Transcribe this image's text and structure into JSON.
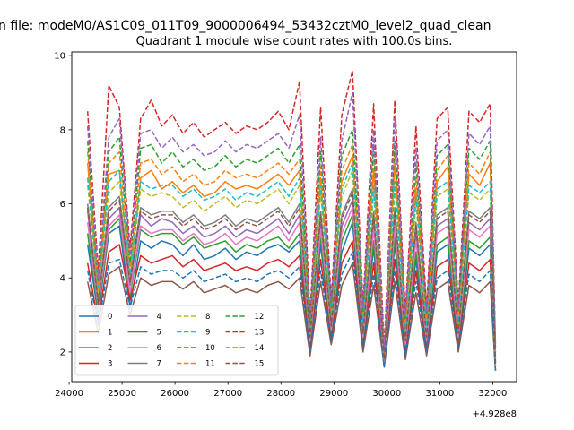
{
  "chart_data": {
    "type": "line",
    "suptitle": "n file: modeM0/AS1C09_011T09_9000006494_53432cztM0_level2_quad_clean",
    "title": "Quadrant 1 module wise count rates with 100.0s bins.",
    "xlabel": "",
    "ylabel": "",
    "x_offset_label": "+4.928e8",
    "xlim": [
      24050,
      32450
    ],
    "ylim": [
      1.2,
      10.1
    ],
    "x_ticks": [
      24000,
      25000,
      26000,
      27000,
      28000,
      29000,
      30000,
      31000,
      32000
    ],
    "y_ticks": [
      2,
      4,
      6,
      8,
      10
    ],
    "legend_position": "lower-left",
    "legend_columns": 4,
    "x": [
      24350,
      24550,
      24750,
      24950,
      25150,
      25350,
      25550,
      25750,
      25950,
      26150,
      26350,
      26550,
      26750,
      26950,
      27150,
      27350,
      27550,
      27750,
      27950,
      28150,
      28350,
      28550,
      28750,
      28950,
      29150,
      29350,
      29550,
      29750,
      29950,
      30150,
      30350,
      30550,
      30750,
      30950,
      31150,
      31350,
      31550,
      31750,
      31950,
      32050
    ],
    "series": [
      {
        "name": "0",
        "color": "#1f77b4",
        "style": "solid",
        "values": [
          4.9,
          3.0,
          5.2,
          5.4,
          3.2,
          5.0,
          4.8,
          5.0,
          4.9,
          4.6,
          4.9,
          4.5,
          4.6,
          4.8,
          4.5,
          4.7,
          4.6,
          4.8,
          4.9,
          4.7,
          5.0,
          2.1,
          4.9,
          2.4,
          4.7,
          5.5,
          2.2,
          4.8,
          1.6,
          4.9,
          2.0,
          4.5,
          2.1,
          4.7,
          4.9,
          2.2,
          4.8,
          4.6,
          4.9,
          1.5
        ]
      },
      {
        "name": "1",
        "color": "#ff7f0e",
        "style": "solid",
        "values": [
          7.1,
          3.5,
          6.8,
          6.9,
          4.0,
          6.7,
          6.9,
          6.4,
          6.6,
          6.3,
          6.5,
          6.2,
          6.3,
          6.6,
          6.4,
          6.5,
          6.4,
          6.6,
          6.8,
          6.5,
          6.9,
          2.6,
          6.7,
          3.0,
          6.6,
          7.3,
          2.9,
          6.9,
          1.8,
          7.1,
          2.7,
          6.4,
          2.8,
          6.6,
          7.0,
          2.9,
          6.8,
          6.5,
          7.1,
          1.9
        ]
      },
      {
        "name": "2",
        "color": "#2ca02c",
        "style": "solid",
        "values": [
          5.2,
          3.1,
          5.3,
          5.6,
          3.5,
          5.3,
          5.1,
          5.2,
          5.2,
          4.9,
          5.1,
          4.8,
          4.9,
          5.0,
          4.7,
          4.9,
          4.8,
          5.0,
          5.1,
          4.8,
          5.2,
          2.2,
          5.1,
          2.5,
          5.0,
          5.7,
          2.3,
          5.0,
          1.7,
          5.1,
          2.1,
          4.7,
          2.3,
          4.9,
          5.1,
          2.3,
          5.0,
          4.8,
          5.1,
          1.6
        ]
      },
      {
        "name": "3",
        "color": "#d62728",
        "style": "solid",
        "values": [
          4.4,
          2.8,
          4.7,
          4.9,
          3.4,
          4.6,
          4.4,
          4.5,
          4.6,
          4.3,
          4.5,
          4.2,
          4.3,
          4.4,
          4.2,
          4.3,
          4.2,
          4.4,
          4.5,
          4.3,
          4.6,
          2.0,
          4.5,
          2.3,
          4.4,
          5.0,
          2.1,
          4.4,
          1.6,
          4.5,
          1.9,
          4.2,
          2.0,
          4.3,
          4.5,
          2.1,
          4.4,
          4.2,
          4.5,
          1.5
        ]
      },
      {
        "name": "4",
        "color": "#9467bd",
        "style": "solid",
        "values": [
          5.8,
          3.3,
          5.6,
          5.9,
          3.8,
          5.7,
          5.4,
          5.6,
          5.5,
          5.2,
          5.4,
          5.1,
          5.2,
          5.4,
          5.1,
          5.3,
          5.2,
          5.4,
          5.6,
          5.2,
          5.7,
          2.4,
          5.5,
          2.7,
          5.4,
          6.1,
          2.5,
          5.5,
          1.7,
          5.6,
          2.3,
          5.2,
          2.4,
          5.4,
          5.6,
          2.5,
          5.5,
          5.3,
          5.6,
          1.7
        ]
      },
      {
        "name": "5",
        "color": "#8c564b",
        "style": "solid",
        "values": [
          3.9,
          2.5,
          4.1,
          4.3,
          3.0,
          4.0,
          3.8,
          3.9,
          3.9,
          3.7,
          3.9,
          3.6,
          3.7,
          3.8,
          3.6,
          3.7,
          3.6,
          3.8,
          3.9,
          3.7,
          4.0,
          1.9,
          3.9,
          2.2,
          3.8,
          4.4,
          2.0,
          3.8,
          1.6,
          3.9,
          1.8,
          3.6,
          1.9,
          3.7,
          3.9,
          2.0,
          3.8,
          3.6,
          3.9,
          1.5
        ]
      },
      {
        "name": "6",
        "color": "#e377c2",
        "style": "solid",
        "values": [
          5.5,
          3.2,
          5.4,
          5.7,
          3.6,
          5.4,
          5.2,
          5.3,
          5.3,
          5.0,
          5.2,
          4.9,
          5.0,
          5.2,
          4.9,
          5.1,
          5.0,
          5.2,
          5.4,
          5.0,
          5.5,
          2.3,
          5.3,
          2.6,
          5.2,
          5.9,
          2.4,
          5.3,
          1.7,
          5.4,
          2.2,
          5.0,
          2.3,
          5.2,
          5.4,
          2.4,
          5.3,
          5.1,
          5.4,
          1.6
        ]
      },
      {
        "name": "7",
        "color": "#7f7f7f",
        "style": "solid",
        "values": [
          6.0,
          3.4,
          5.9,
          6.2,
          3.9,
          5.9,
          5.7,
          5.8,
          5.8,
          5.5,
          5.7,
          5.4,
          5.5,
          5.7,
          5.4,
          5.6,
          5.5,
          5.7,
          5.9,
          5.5,
          6.0,
          2.4,
          5.8,
          2.8,
          5.7,
          6.4,
          2.6,
          5.8,
          1.8,
          5.9,
          2.4,
          5.5,
          2.5,
          5.7,
          5.9,
          2.6,
          5.8,
          5.6,
          5.9,
          1.7
        ]
      },
      {
        "name": "8",
        "color": "#bcbd22",
        "style": "dashed",
        "values": [
          6.5,
          3.6,
          6.3,
          6.6,
          4.0,
          6.4,
          6.2,
          6.3,
          6.2,
          5.9,
          6.1,
          5.8,
          6.0,
          6.2,
          5.9,
          6.1,
          6.0,
          6.2,
          6.4,
          6.0,
          6.5,
          2.5,
          6.3,
          2.9,
          6.2,
          6.9,
          2.7,
          6.3,
          1.8,
          6.4,
          2.5,
          6.0,
          2.6,
          6.2,
          6.4,
          2.7,
          6.3,
          6.1,
          6.4,
          1.8
        ]
      },
      {
        "name": "9",
        "color": "#17becf",
        "style": "dashed",
        "values": [
          6.7,
          3.7,
          6.6,
          6.9,
          4.1,
          6.6,
          6.4,
          6.5,
          6.5,
          6.2,
          6.4,
          6.1,
          6.2,
          6.4,
          6.1,
          6.3,
          6.2,
          6.4,
          6.6,
          6.2,
          6.7,
          2.6,
          6.5,
          3.0,
          6.4,
          7.1,
          2.8,
          6.5,
          1.9,
          6.6,
          2.6,
          6.2,
          2.7,
          6.4,
          6.6,
          2.8,
          6.5,
          6.3,
          6.6,
          1.8
        ]
      },
      {
        "name": "10",
        "color": "#1f77b4",
        "style": "dashed",
        "values": [
          4.2,
          2.7,
          4.4,
          4.5,
          3.2,
          4.3,
          4.1,
          4.2,
          4.2,
          4.0,
          4.2,
          3.9,
          4.0,
          4.1,
          3.9,
          4.0,
          3.9,
          4.1,
          4.2,
          4.0,
          4.3,
          2.0,
          4.2,
          2.3,
          4.1,
          4.7,
          2.1,
          4.1,
          1.6,
          4.2,
          1.9,
          3.9,
          2.0,
          4.0,
          4.2,
          2.1,
          4.1,
          3.9,
          4.2,
          1.5
        ]
      },
      {
        "name": "11",
        "color": "#ff7f0e",
        "style": "dashed",
        "values": [
          7.4,
          3.8,
          7.1,
          7.4,
          4.3,
          7.1,
          7.2,
          6.8,
          7.0,
          6.6,
          6.8,
          6.5,
          6.6,
          6.9,
          6.7,
          6.8,
          6.7,
          6.9,
          7.1,
          6.8,
          7.2,
          2.7,
          7.0,
          3.1,
          6.9,
          7.6,
          3.0,
          7.2,
          1.9,
          7.4,
          2.8,
          6.7,
          2.9,
          6.9,
          7.3,
          3.0,
          7.1,
          6.8,
          7.4,
          2.0
        ]
      },
      {
        "name": "12",
        "color": "#2ca02c",
        "style": "dashed",
        "values": [
          7.7,
          3.9,
          7.4,
          7.8,
          4.4,
          7.5,
          7.6,
          7.1,
          7.4,
          7.0,
          7.2,
          6.9,
          7.0,
          7.3,
          7.0,
          7.2,
          7.1,
          7.3,
          7.5,
          7.1,
          7.6,
          2.8,
          7.4,
          3.2,
          7.3,
          8.0,
          3.1,
          7.6,
          2.0,
          7.7,
          2.9,
          7.1,
          3.0,
          7.3,
          7.6,
          3.1,
          7.5,
          7.2,
          7.7,
          2.1
        ]
      },
      {
        "name": "13",
        "color": "#d62728",
        "style": "dashed",
        "values": [
          8.5,
          4.2,
          9.2,
          8.6,
          4.8,
          8.3,
          8.8,
          8.1,
          8.4,
          7.9,
          8.2,
          7.8,
          8.0,
          8.2,
          7.9,
          8.1,
          8.0,
          8.2,
          8.5,
          8.0,
          9.3,
          3.0,
          8.6,
          3.4,
          8.4,
          9.6,
          3.3,
          8.7,
          2.1,
          8.8,
          3.1,
          8.1,
          3.2,
          8.3,
          8.6,
          3.3,
          8.5,
          8.2,
          8.7,
          2.2
        ]
      },
      {
        "name": "14",
        "color": "#9467bd",
        "style": "dashed",
        "values": [
          8.1,
          4.0,
          7.8,
          8.3,
          4.6,
          7.9,
          8.0,
          7.5,
          7.8,
          7.4,
          7.6,
          7.3,
          7.4,
          7.7,
          7.4,
          7.6,
          7.5,
          7.7,
          7.9,
          7.5,
          8.4,
          2.9,
          7.8,
          3.3,
          7.7,
          9.0,
          3.2,
          8.0,
          2.0,
          8.3,
          3.0,
          7.5,
          3.1,
          7.7,
          8.0,
          3.2,
          7.9,
          7.6,
          8.1,
          2.1
        ]
      },
      {
        "name": "15",
        "color": "#8c564b",
        "style": "dashed",
        "values": [
          5.9,
          3.3,
          5.8,
          6.1,
          3.9,
          5.8,
          5.6,
          5.7,
          5.7,
          5.4,
          5.6,
          5.3,
          5.4,
          5.6,
          5.3,
          5.5,
          5.4,
          5.6,
          5.8,
          5.4,
          5.9,
          2.4,
          5.7,
          2.7,
          5.6,
          6.3,
          2.5,
          5.7,
          1.8,
          5.8,
          2.3,
          5.4,
          2.4,
          5.6,
          5.8,
          2.5,
          5.7,
          5.5,
          5.8,
          1.7
        ]
      }
    ]
  }
}
